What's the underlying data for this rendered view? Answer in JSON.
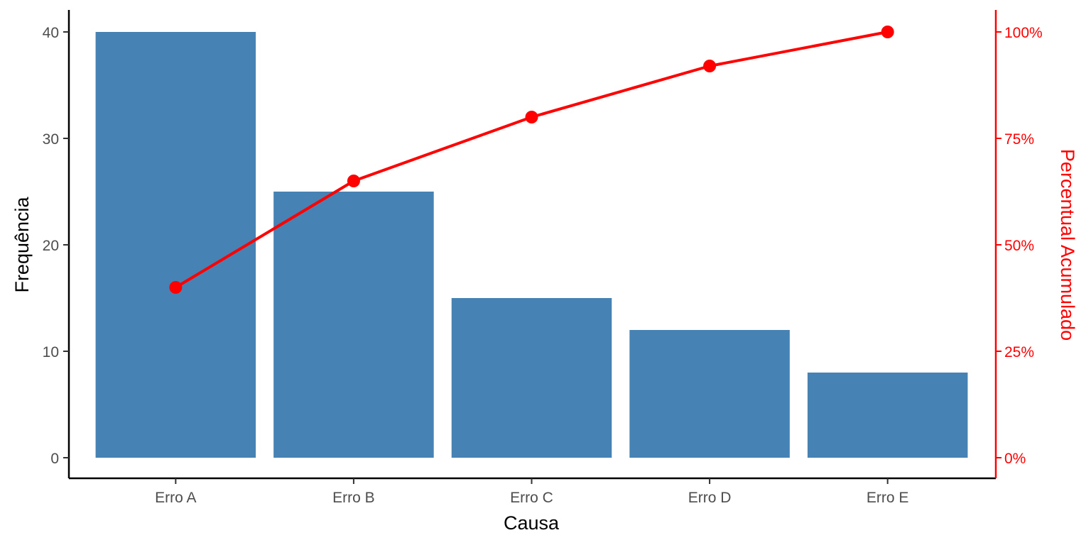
{
  "chart_data": {
    "type": "bar",
    "categories": [
      "Erro A",
      "Erro B",
      "Erro C",
      "Erro D",
      "Erro E"
    ],
    "values": [
      40,
      25,
      15,
      12,
      8
    ],
    "cumulative_percent": [
      40,
      65,
      80,
      92,
      100
    ],
    "xlabel": "Causa",
    "ylabel": "Frequência",
    "ylabel_right": "Percentual Acumulado",
    "ylim": [
      0,
      40
    ],
    "ylim_right": [
      0,
      100
    ],
    "yticks": [
      0,
      10,
      20,
      30,
      40
    ],
    "yticks_right": [
      "0%",
      "25%",
      "50%",
      "75%",
      "100%"
    ],
    "grid": false,
    "colors": {
      "bars": "#4682b4",
      "line": "#ff0000",
      "axis": "#000000",
      "tick_text": "#4d4d4d"
    }
  }
}
